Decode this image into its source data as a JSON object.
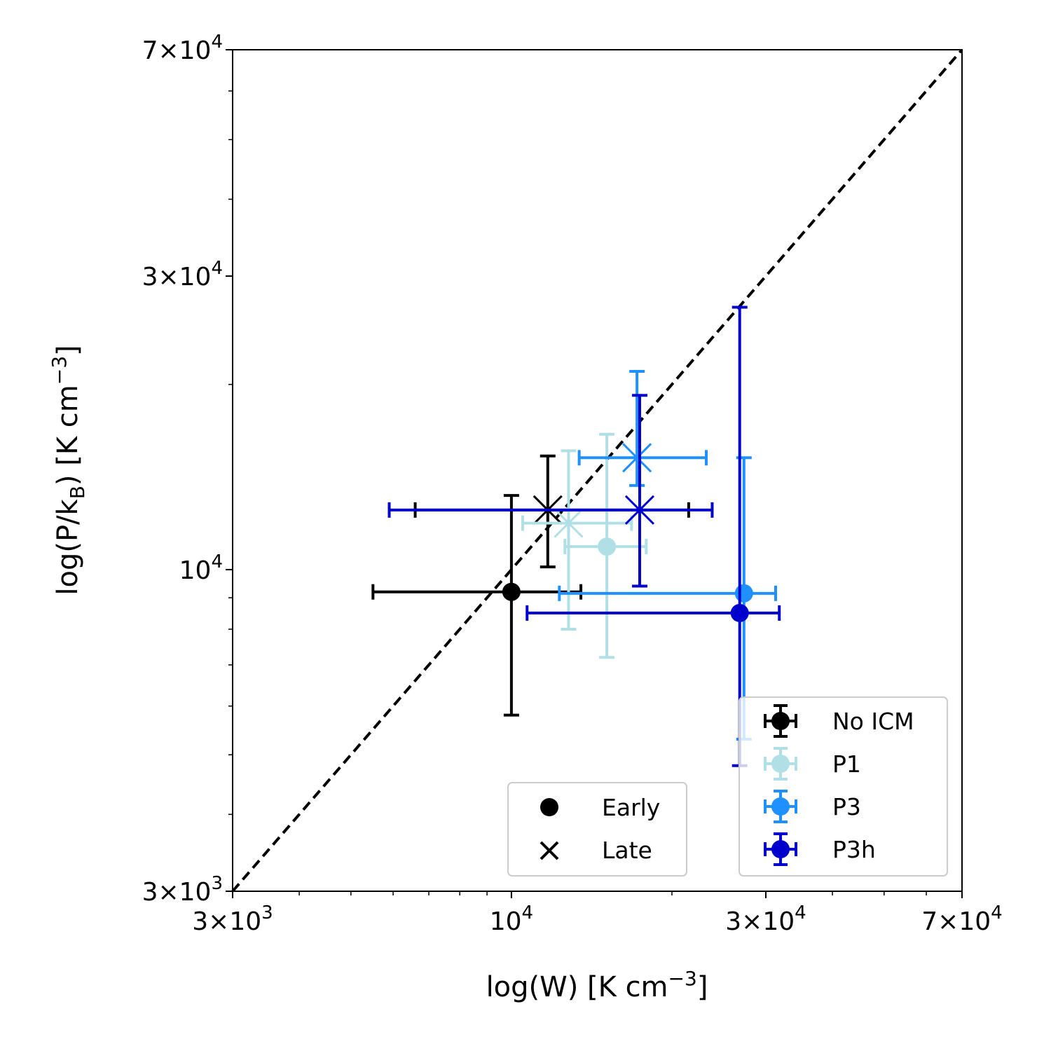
{
  "chart_data": {
    "type": "scatter",
    "xlabel": "log(W) [K cm",
    "xlabel_sup": "−3",
    "xlabel_end": "]",
    "ylabel": "log(P/k",
    "ylabel_sub": "B",
    "ylabel_mid": ") [K cm",
    "ylabel_sup": "−3",
    "ylabel_end": "]",
    "x_scale": "log",
    "y_scale": "log",
    "xlim": [
      3000,
      70000
    ],
    "ylim": [
      3000,
      70000
    ],
    "grid": false,
    "x_ticks": [
      {
        "value": 3000,
        "mant": "3×10",
        "exp": "3"
      },
      {
        "value": 10000,
        "mant": "10",
        "exp": "4"
      },
      {
        "value": 30000,
        "mant": "3×10",
        "exp": "4"
      },
      {
        "value": 70000,
        "mant": "7×10",
        "exp": "4"
      }
    ],
    "y_ticks": [
      {
        "value": 3000,
        "mant": "3×10",
        "exp": "3"
      },
      {
        "value": 10000,
        "mant": "10",
        "exp": "4"
      },
      {
        "value": 30000,
        "mant": "3×10",
        "exp": "4"
      },
      {
        "value": 70000,
        "mant": "7×10",
        "exp": "4"
      }
    ],
    "reference_line": {
      "style": "dashed",
      "color": "#000000",
      "from": [
        3000,
        3000
      ],
      "to": [
        70000,
        70000
      ]
    },
    "series": [
      {
        "name": "No ICM",
        "color": "#000000",
        "points": [
          {
            "phase": "early",
            "x": 10000,
            "y": 9200,
            "xerr": [
              5500,
              13500
            ],
            "yerr": [
              5800,
              13200
            ]
          },
          {
            "phase": "late",
            "x": 11700,
            "y": 12500,
            "xerr": [
              6600,
              21500
            ],
            "yerr": [
              10100,
              15300
            ]
          }
        ]
      },
      {
        "name": "P1",
        "color": "#b0e0e6",
        "points": [
          {
            "phase": "early",
            "x": 15100,
            "y": 10900,
            "xerr": [
              12600,
              17900
            ],
            "yerr": [
              7200,
              16600
            ]
          },
          {
            "phase": "late",
            "x": 12800,
            "y": 11900,
            "xerr": [
              10500,
              16800
            ],
            "yerr": [
              8000,
              15600
            ]
          }
        ]
      },
      {
        "name": "P3",
        "color": "#1e90ff",
        "points": [
          {
            "phase": "early",
            "x": 27300,
            "y": 9150,
            "xerr": [
              12300,
              31300
            ],
            "yerr": [
              5300,
              15200
            ]
          },
          {
            "phase": "late",
            "x": 17200,
            "y": 15200,
            "xerr": [
              13400,
              23200
            ],
            "yerr": [
              13700,
              21000
            ]
          }
        ]
      },
      {
        "name": "P3h",
        "color": "#0000cd",
        "points": [
          {
            "phase": "early",
            "x": 26800,
            "y": 8500,
            "xerr": [
              10700,
              31800
            ],
            "yerr": [
              4800,
              26700
            ]
          },
          {
            "phase": "late",
            "x": 17400,
            "y": 12500,
            "xerr": [
              5900,
              23800
            ],
            "yerr": [
              9400,
              19200
            ]
          }
        ]
      }
    ],
    "legends": [
      {
        "placement": "lower-center-right",
        "entries": [
          {
            "marker": "circle",
            "label": "Early"
          },
          {
            "marker": "x",
            "label": "Late"
          }
        ]
      },
      {
        "placement": "lower-right",
        "entries": [
          "No ICM",
          "P1",
          "P3",
          "P3h"
        ]
      }
    ]
  }
}
